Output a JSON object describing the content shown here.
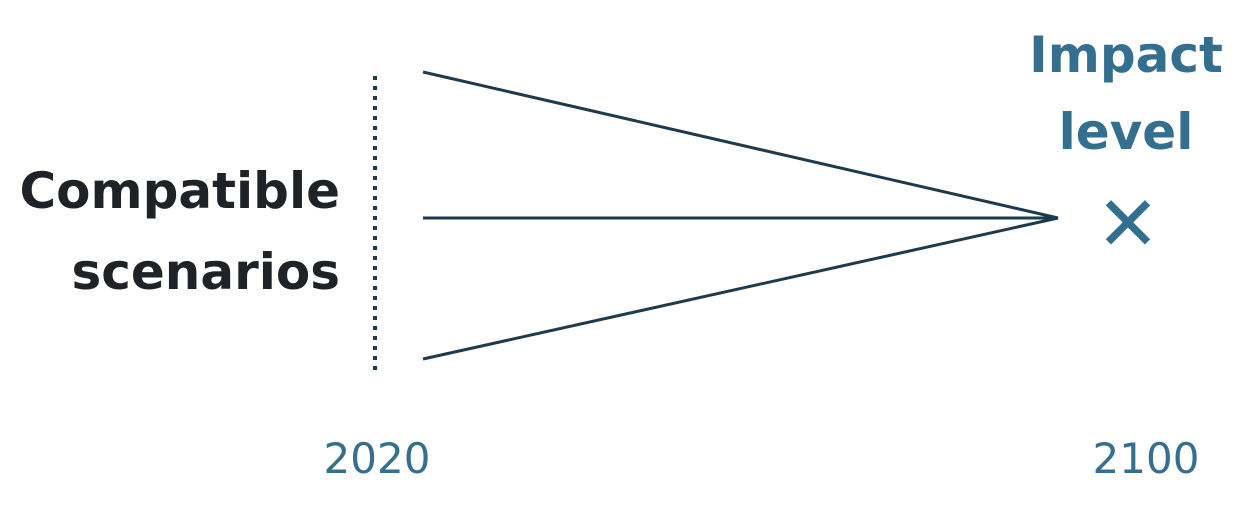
{
  "left_label": {
    "line1": "Compatible",
    "line2": "scenarios"
  },
  "right_label": {
    "line1": "Impact",
    "line2": "level"
  },
  "marker": "✕",
  "years": {
    "start": "2020",
    "end": "2100"
  },
  "colors": {
    "line": "#1e3a4f",
    "accent": "#356f8f",
    "text": "#1f2328"
  },
  "scenario_count": 3
}
